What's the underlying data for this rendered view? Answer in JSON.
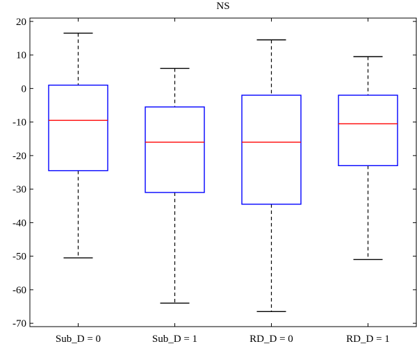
{
  "chart_data": {
    "type": "box",
    "title": "NS",
    "xlabel": "",
    "ylabel": "",
    "categories": [
      "Sub_D = 0",
      "Sub_D = 1",
      "RD_D = 0",
      "RD_D = 1"
    ],
    "yticks": [
      20,
      10,
      0,
      -10,
      -20,
      -30,
      -40,
      -50,
      -60,
      -70
    ],
    "ylim": [
      -71,
      21
    ],
    "grid": false,
    "boxes": [
      {
        "label": "Sub_D = 0",
        "whisker_low": -50.5,
        "q1": -24.5,
        "median": -9.5,
        "q3": 1,
        "whisker_high": 16.5
      },
      {
        "label": "Sub_D = 1",
        "whisker_low": -64,
        "q1": -31,
        "median": -16,
        "q3": -5.5,
        "whisker_high": 6
      },
      {
        "label": "RD_D = 0",
        "whisker_low": -66.5,
        "q1": -34.5,
        "median": -16,
        "q3": -2,
        "whisker_high": 14.5
      },
      {
        "label": "RD_D = 1",
        "whisker_low": -51,
        "q1": -23,
        "median": -10.5,
        "q3": -2,
        "whisker_high": 9.5
      }
    ],
    "colors": {
      "box": "#0000ff",
      "median": "#ff0000",
      "whisker": "#000000"
    }
  }
}
